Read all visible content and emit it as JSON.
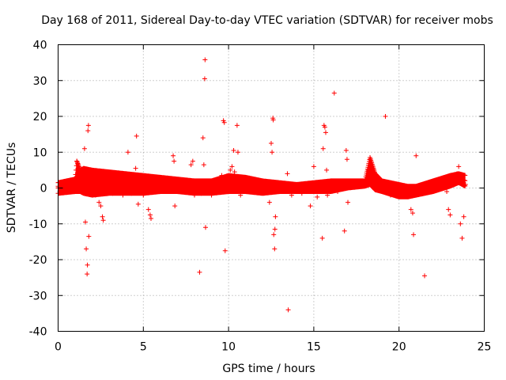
{
  "chart_data": {
    "type": "scatter",
    "title": "Day 168 of 2011, Sidereal Day-to-day VTEC variation (SDTVAR) for receiver mobs",
    "xlabel": "GPS time / hours",
    "ylabel": "SDTVAR / TECUs",
    "xlim": [
      0,
      25
    ],
    "ylim": [
      -40,
      40
    ],
    "xticks": [
      0,
      5,
      10,
      15,
      20,
      25
    ],
    "yticks": [
      -40,
      -30,
      -20,
      -10,
      0,
      10,
      20,
      30,
      40
    ],
    "grid": true,
    "marker": "+",
    "series": [
      {
        "name": "SDTVAR",
        "color": "#ff0000",
        "points": [
          [
            0.0,
            0.5
          ],
          [
            0.1,
            -1.0
          ],
          [
            0.2,
            1.2
          ],
          [
            0.3,
            -0.5
          ],
          [
            0.4,
            1.0
          ],
          [
            0.5,
            -1.2
          ],
          [
            0.6,
            0.8
          ],
          [
            0.7,
            -0.8
          ],
          [
            0.8,
            1.5
          ],
          [
            0.9,
            -0.2
          ],
          [
            1.0,
            2.0
          ],
          [
            1.1,
            7.5
          ],
          [
            1.15,
            6.8
          ],
          [
            1.2,
            5.0
          ],
          [
            1.25,
            3.5
          ],
          [
            1.3,
            2.0
          ],
          [
            1.4,
            3.0
          ],
          [
            1.5,
            1.0
          ],
          [
            1.55,
            11.0
          ],
          [
            1.6,
            -9.5
          ],
          [
            1.65,
            -17.0
          ],
          [
            1.7,
            -24.0
          ],
          [
            1.72,
            -21.5
          ],
          [
            1.75,
            16.0
          ],
          [
            1.78,
            17.5
          ],
          [
            1.8,
            -13.5
          ],
          [
            1.9,
            5.0
          ],
          [
            2.0,
            2.0
          ],
          [
            2.1,
            3.0
          ],
          [
            2.2,
            -2.0
          ],
          [
            2.3,
            0.5
          ],
          [
            2.4,
            -4.0
          ],
          [
            2.5,
            -5.0
          ],
          [
            2.6,
            -8.0
          ],
          [
            2.65,
            -9.0
          ],
          [
            2.7,
            2.0
          ],
          [
            2.8,
            1.0
          ],
          [
            3.0,
            2.5
          ],
          [
            3.2,
            -1.5
          ],
          [
            3.5,
            1.5
          ],
          [
            3.8,
            -2.0
          ],
          [
            4.0,
            1.0
          ],
          [
            4.1,
            10.0
          ],
          [
            4.3,
            -1.5
          ],
          [
            4.5,
            3.0
          ],
          [
            4.55,
            5.5
          ],
          [
            4.6,
            14.5
          ],
          [
            4.7,
            -4.5
          ],
          [
            4.8,
            2.0
          ],
          [
            5.0,
            -2.0
          ],
          [
            5.2,
            1.0
          ],
          [
            5.3,
            -6.0
          ],
          [
            5.4,
            -7.5
          ],
          [
            5.45,
            -8.5
          ],
          [
            5.6,
            1.5
          ],
          [
            5.8,
            -1.0
          ],
          [
            6.0,
            2.0
          ],
          [
            6.2,
            -0.5
          ],
          [
            6.4,
            1.0
          ],
          [
            6.6,
            2.5
          ],
          [
            6.75,
            9.0
          ],
          [
            6.8,
            7.5
          ],
          [
            6.85,
            -5.0
          ],
          [
            7.0,
            1.0
          ],
          [
            7.2,
            -1.0
          ],
          [
            7.4,
            1.5
          ],
          [
            7.6,
            0.0
          ],
          [
            7.8,
            6.5
          ],
          [
            7.9,
            7.5
          ],
          [
            8.0,
            -2.0
          ],
          [
            8.2,
            1.0
          ],
          [
            8.3,
            -23.5
          ],
          [
            8.4,
            -1.5
          ],
          [
            8.5,
            14.0
          ],
          [
            8.55,
            6.5
          ],
          [
            8.6,
            30.5
          ],
          [
            8.62,
            35.8
          ],
          [
            8.65,
            -11.0
          ],
          [
            8.8,
            1.0
          ],
          [
            9.0,
            -2.0
          ],
          [
            9.2,
            0.5
          ],
          [
            9.4,
            -1.0
          ],
          [
            9.6,
            3.5
          ],
          [
            9.7,
            18.8
          ],
          [
            9.75,
            18.3
          ],
          [
            9.8,
            -17.5
          ],
          [
            10.0,
            1.5
          ],
          [
            10.1,
            5.0
          ],
          [
            10.2,
            6.0
          ],
          [
            10.3,
            10.5
          ],
          [
            10.35,
            4.5
          ],
          [
            10.5,
            17.5
          ],
          [
            10.55,
            10.0
          ],
          [
            10.7,
            -2.0
          ],
          [
            11.0,
            1.0
          ],
          [
            11.2,
            -1.0
          ],
          [
            11.5,
            1.5
          ],
          [
            11.8,
            -0.5
          ],
          [
            12.0,
            2.0
          ],
          [
            12.2,
            -1.0
          ],
          [
            12.4,
            -4.0
          ],
          [
            12.5,
            12.5
          ],
          [
            12.55,
            10.0
          ],
          [
            12.6,
            19.5
          ],
          [
            12.62,
            19.0
          ],
          [
            12.65,
            -13.0
          ],
          [
            12.7,
            -17.0
          ],
          [
            12.72,
            -11.5
          ],
          [
            12.75,
            -8.0
          ],
          [
            12.8,
            0.5
          ],
          [
            13.0,
            -1.0
          ],
          [
            13.2,
            1.0
          ],
          [
            13.45,
            4.0
          ],
          [
            13.5,
            -34.0
          ],
          [
            13.7,
            -2.0
          ],
          [
            14.0,
            1.0
          ],
          [
            14.3,
            -1.5
          ],
          [
            14.5,
            0.5
          ],
          [
            14.8,
            -5.0
          ],
          [
            15.0,
            6.0
          ],
          [
            15.2,
            -2.5
          ],
          [
            15.4,
            1.0
          ],
          [
            15.5,
            -14.0
          ],
          [
            15.55,
            11.0
          ],
          [
            15.6,
            17.5
          ],
          [
            15.65,
            17.0
          ],
          [
            15.7,
            15.5
          ],
          [
            15.75,
            5.0
          ],
          [
            15.8,
            -2.0
          ],
          [
            16.0,
            1.0
          ],
          [
            16.2,
            26.5
          ],
          [
            16.4,
            -1.0
          ],
          [
            16.6,
            1.0
          ],
          [
            16.8,
            -12.0
          ],
          [
            16.9,
            10.5
          ],
          [
            16.95,
            8.0
          ],
          [
            17.0,
            -4.0
          ],
          [
            17.2,
            1.5
          ],
          [
            17.5,
            0.5
          ],
          [
            17.8,
            1.5
          ],
          [
            18.0,
            1.0
          ],
          [
            18.2,
            5.0
          ],
          [
            18.3,
            8.5
          ],
          [
            18.35,
            6.0
          ],
          [
            18.5,
            3.0
          ],
          [
            18.8,
            1.0
          ],
          [
            19.0,
            -1.0
          ],
          [
            19.2,
            20.0
          ],
          [
            19.5,
            -2.0
          ],
          [
            19.8,
            -1.0
          ],
          [
            20.0,
            -2.0
          ],
          [
            20.2,
            -1.5
          ],
          [
            20.5,
            -2.0
          ],
          [
            20.7,
            -6.0
          ],
          [
            20.8,
            -7.0
          ],
          [
            20.85,
            -13.0
          ],
          [
            21.0,
            9.0
          ],
          [
            21.1,
            -1.0
          ],
          [
            21.3,
            -1.5
          ],
          [
            21.5,
            -24.5
          ],
          [
            21.8,
            0.5
          ],
          [
            22.0,
            1.0
          ],
          [
            22.3,
            2.0
          ],
          [
            22.6,
            2.5
          ],
          [
            22.8,
            -1.0
          ],
          [
            22.9,
            -6.0
          ],
          [
            23.0,
            -7.5
          ],
          [
            23.2,
            3.0
          ],
          [
            23.4,
            4.0
          ],
          [
            23.5,
            6.0
          ],
          [
            23.6,
            -10.0
          ],
          [
            23.7,
            -14.0
          ],
          [
            23.8,
            -8.0
          ],
          [
            23.9,
            1.0
          ]
        ],
        "dense_band": [
          [
            0.0,
            -1.5,
            1.5
          ],
          [
            1.0,
            -1.0,
            2.5
          ],
          [
            1.1,
            -1.0,
            7.5
          ],
          [
            1.3,
            -1.0,
            5.0
          ],
          [
            1.5,
            -1.5,
            5.5
          ],
          [
            2.0,
            -2.0,
            5.0
          ],
          [
            3.0,
            -1.5,
            4.5
          ],
          [
            4.0,
            -1.5,
            4.0
          ],
          [
            5.0,
            -1.5,
            3.5
          ],
          [
            6.0,
            -1.0,
            3.0
          ],
          [
            7.0,
            -1.0,
            2.5
          ],
          [
            8.0,
            -1.5,
            2.0
          ],
          [
            9.0,
            -1.5,
            2.0
          ],
          [
            10.0,
            -1.0,
            3.5
          ],
          [
            11.0,
            -1.0,
            3.0
          ],
          [
            12.0,
            -1.5,
            2.0
          ],
          [
            13.0,
            -1.0,
            1.5
          ],
          [
            14.0,
            -1.0,
            1.0
          ],
          [
            15.0,
            -1.0,
            1.5
          ],
          [
            16.0,
            -1.0,
            2.0
          ],
          [
            17.0,
            0.0,
            2.0
          ],
          [
            18.0,
            0.5,
            2.0
          ],
          [
            18.3,
            1.0,
            8.5
          ],
          [
            18.6,
            -0.5,
            4.0
          ],
          [
            19.0,
            -1.0,
            2.0
          ],
          [
            20.0,
            -2.5,
            1.0
          ],
          [
            20.5,
            -2.5,
            0.5
          ],
          [
            21.0,
            -2.0,
            0.5
          ],
          [
            22.0,
            -1.0,
            2.0
          ],
          [
            23.0,
            0.5,
            3.5
          ],
          [
            23.5,
            1.5,
            4.0
          ],
          [
            23.9,
            0.5,
            3.5
          ]
        ]
      }
    ]
  }
}
